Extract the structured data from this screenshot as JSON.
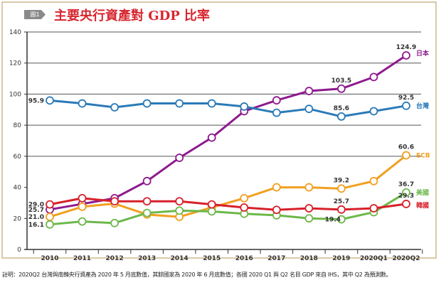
{
  "header": {
    "badge": "圖1",
    "title": "主要央行資產對 GDP 比率"
  },
  "note": "註明：2020Q2 台灣與南韓央行資產為 2020 年 5 月底數值，其餘國家為 2020 年 6 月底數值；各國 2020 Q1 與 Q2 名目 GDP 來自 IHS，其中 Q2 為預測數。",
  "chart_data": {
    "type": "line",
    "title": "主要央行資產對 GDP 比率",
    "xlabel": "",
    "ylabel": "",
    "ylim": [
      0,
      140
    ],
    "yticks": [
      "0",
      "20",
      "40",
      "60",
      "80",
      "100",
      "120",
      "140"
    ],
    "categories": [
      "2010",
      "2011",
      "2012",
      "2013",
      "2014",
      "2015",
      "2016",
      "2017",
      "2018",
      "2019",
      "2020Q1",
      "2020Q2"
    ],
    "grid": "horizontal at 60,80,100,120,140",
    "series": [
      {
        "name": "日本",
        "color": "#8e1a8e",
        "values": [
          25.7,
          29.3,
          33,
          44,
          59,
          72,
          89,
          96,
          102,
          103.5,
          111,
          124.9
        ],
        "labels": {
          "0": "25.7",
          "9": "103.5",
          "11": "124.9"
        }
      },
      {
        "name": "台灣",
        "color": "#2a7ab8",
        "values": [
          95.9,
          94,
          91.5,
          94,
          94,
          94,
          92,
          88,
          90.5,
          85.6,
          89,
          92.5
        ],
        "labels": {
          "0": "95.9",
          "9": "85.6",
          "11": "92.5"
        }
      },
      {
        "name": "ECB",
        "color": "#f0a020",
        "values": [
          21.0,
          27.5,
          29.5,
          22.5,
          21,
          27,
          33,
          40,
          40,
          39.2,
          44,
          60.6
        ],
        "labels": {
          "0": "21.0",
          "9": "39.2",
          "11": "60.6"
        }
      },
      {
        "name": "美國",
        "color": "#6cb84a",
        "values": [
          16.1,
          18,
          17,
          23.5,
          25,
          24.5,
          23,
          22,
          20,
          19.4,
          24,
          36.7
        ],
        "labels": {
          "0": "16.1",
          "9": "19.4",
          "11": "36.7"
        }
      },
      {
        "name": "韓國",
        "color": "#d7202a",
        "values": [
          29.0,
          33,
          31,
          31,
          31,
          29,
          27,
          25.5,
          26.5,
          25.7,
          26.5,
          29.3
        ],
        "labels": {
          "0": "29.0",
          "9": "25.7",
          "11": "29.3"
        }
      }
    ]
  }
}
